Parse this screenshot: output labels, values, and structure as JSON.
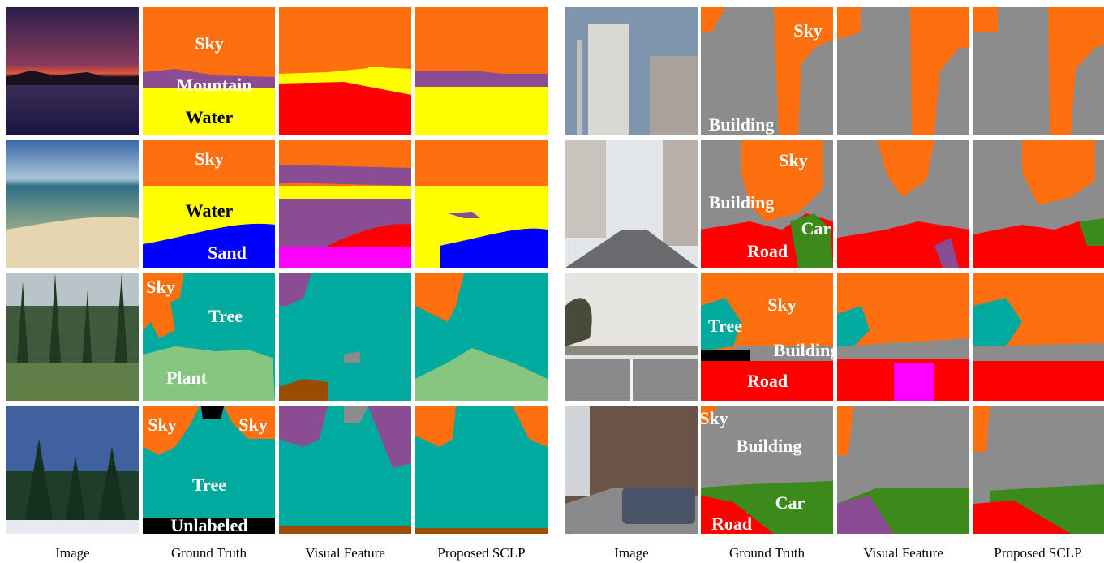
{
  "colors": {
    "sky": "#fe6f0f",
    "mountain": "#8a4d93",
    "water": "#ffff00",
    "sand": "#0000ff",
    "tree": "#00aa9c",
    "plant": "#87c680",
    "building": "#8c8c8c",
    "road": "#ff0000",
    "car": "#3c8a1c",
    "unlabeled": "#000000",
    "error_magenta": "#ff00ff",
    "error_brown": "#9a4d00"
  },
  "captions": {
    "left": [
      "Image",
      "Ground Truth",
      "Visual Feature",
      "Proposed SCLP"
    ],
    "right": [
      "Image",
      "Ground Truth",
      "Visual Feature",
      "Proposed SCLP"
    ]
  },
  "labels": {
    "r1l": [
      "Sky",
      "Mountain",
      "Water"
    ],
    "r2l": [
      "Sky",
      "Water",
      "Sand"
    ],
    "r3l": [
      "Sky",
      "Tree",
      "Plant"
    ],
    "r4l": [
      "Sky",
      "Sky",
      "Tree",
      "Unlabeled"
    ],
    "r1r": [
      "Sky",
      "Building"
    ],
    "r2r": [
      "Sky",
      "Building",
      "Car",
      "Road"
    ],
    "r3r": [
      "Sky",
      "Tree",
      "Building",
      "Road"
    ],
    "r4r": [
      "Sky",
      "Building",
      "Car",
      "Road"
    ]
  }
}
